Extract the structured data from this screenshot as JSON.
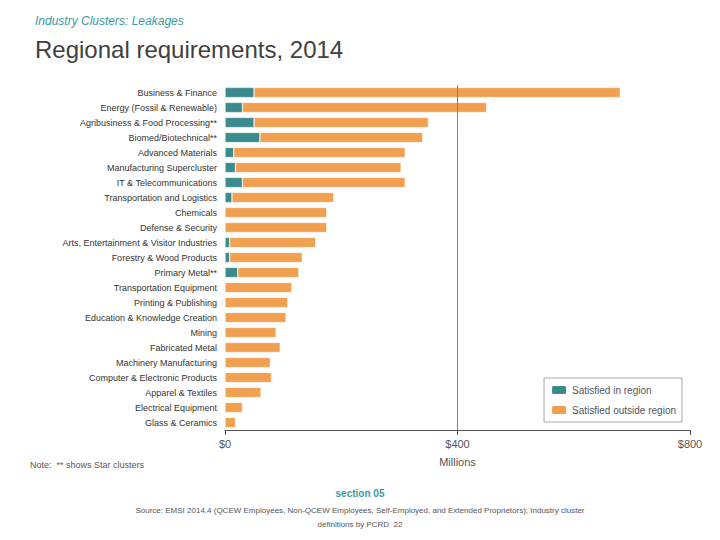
{
  "chart_data": {
    "type": "bar",
    "orientation": "horizontal",
    "stacked": true,
    "title": "Regional requirements, 2014",
    "subtitle": "Industry Clusters: Leakages",
    "categories": [
      "Business & Finance",
      "Energy (Fossil & Renewable)",
      "Agribusiness & Food Processing**",
      "Biomed/Biotechnical**",
      "Advanced Materials",
      "Manufacturing Supercluster",
      "IT & Telecommunications",
      "Transportation and Logistics",
      "Chemicals",
      "Defense & Security",
      "Arts, Entertainment & Visitor Industries",
      "Forestry & Wood Products",
      "Primary Metal**",
      "Transportation Equipment",
      "Printing & Publishing",
      "Education & Knowledge Creation",
      "Mining",
      "Fabricated Metal",
      "Machinery Manufacturing",
      "Computer & Electronic Products",
      "Apparel & Textiles",
      "Electrical Equipment",
      "Glass & Ceramics"
    ],
    "series": [
      {
        "name": "Satisfied in region",
        "color": "#3a8a8e",
        "values": [
          50,
          30,
          50,
          60,
          15,
          18,
          30,
          12,
          0,
          0,
          8,
          8,
          22,
          0,
          0,
          0,
          0,
          0,
          0,
          0,
          0,
          0,
          0
        ]
      },
      {
        "name": "Satisfied outside region",
        "color": "#f0a050",
        "values": [
          630,
          420,
          300,
          280,
          295,
          285,
          280,
          175,
          175,
          175,
          148,
          125,
          105,
          115,
          108,
          105,
          88,
          95,
          78,
          80,
          62,
          30,
          18
        ]
      }
    ],
    "xlabel": "Millions",
    "xlim": [
      0,
      800
    ],
    "xticks": [
      {
        "value": 0,
        "label": "$0"
      },
      {
        "value": 400,
        "label": "$400"
      },
      {
        "value": 800,
        "label": "$800"
      }
    ],
    "vlines": [
      400
    ],
    "grid": false,
    "legend": "lower right",
    "annotations": [
      "Note:  ** shows Star clusters",
      "section 05",
      "Source: EMSI 2014.4 (QCEW Employees, Non-QCEW Employees, Self-Employed, and Extended Proprietors); Industry cluster",
      "definitions by PCRD  22"
    ]
  }
}
